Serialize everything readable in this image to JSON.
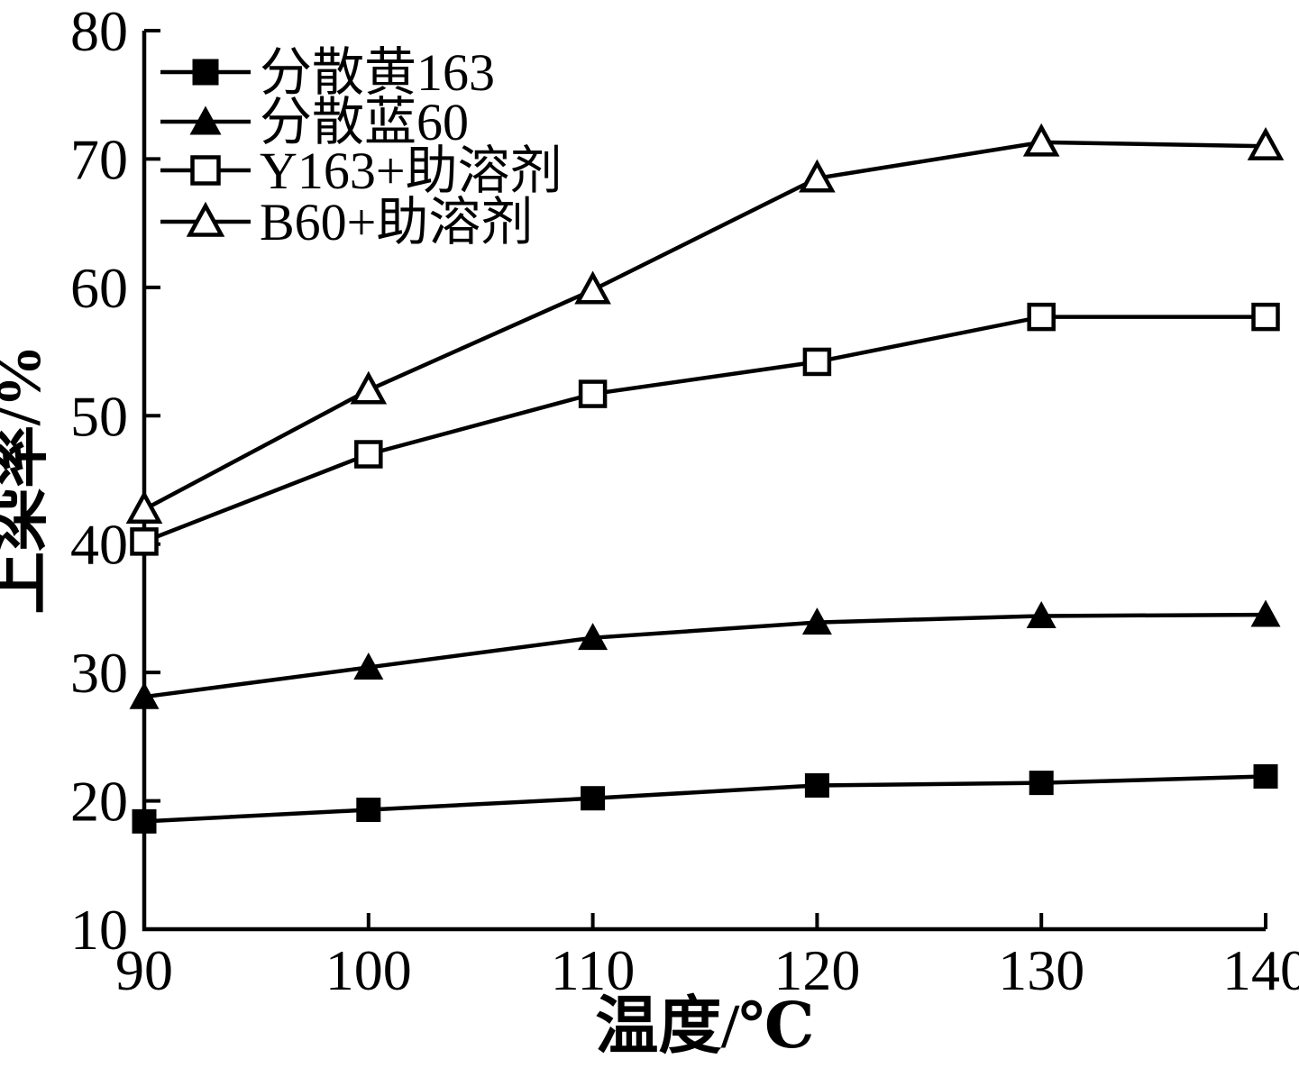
{
  "figure": {
    "background_color": "#ffffff",
    "ink_color": "#000000"
  },
  "chart_data": {
    "type": "line",
    "x": [
      90,
      100,
      110,
      120,
      130,
      140
    ],
    "xlabel": "温度/℃",
    "ylabel": "上染率/%",
    "xlim": [
      90,
      140
    ],
    "ylim": [
      10,
      80
    ],
    "x_ticks": [
      90,
      100,
      110,
      120,
      130,
      140
    ],
    "y_ticks": [
      10,
      20,
      30,
      40,
      50,
      60,
      70,
      80
    ],
    "grid": false,
    "legend_position": "top-left",
    "series": [
      {
        "name": "分散黄163",
        "marker": "filled-square",
        "color": "#000000",
        "values": [
          18.4,
          19.3,
          20.2,
          21.2,
          21.4,
          21.9
        ]
      },
      {
        "name": "分散蓝60",
        "marker": "filled-triangle",
        "color": "#000000",
        "values": [
          28.1,
          30.4,
          32.7,
          33.9,
          34.4,
          34.5
        ]
      },
      {
        "name": "Y163+助溶剂",
        "marker": "open-square",
        "color": "#000000",
        "values": [
          40.2,
          47.0,
          51.7,
          54.2,
          57.7,
          57.7
        ]
      },
      {
        "name": "B60+助溶剂",
        "marker": "open-triangle",
        "color": "#000000",
        "values": [
          42.7,
          52.0,
          59.8,
          68.5,
          71.3,
          71.0
        ]
      }
    ]
  }
}
